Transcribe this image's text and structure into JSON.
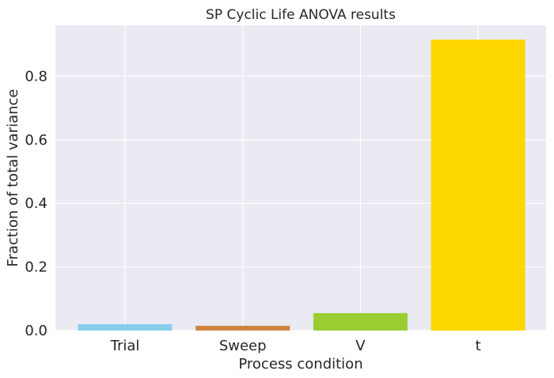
{
  "chart_data": {
    "type": "bar",
    "title": "SP Cyclic Life ANOVA results",
    "xlabel": "Process condition",
    "ylabel": "Fraction of total variance",
    "categories": [
      "Trial",
      "Sweep",
      "V",
      "t"
    ],
    "values": [
      0.02,
      0.015,
      0.055,
      0.915
    ],
    "colors": [
      "#87ceeb",
      "#cd853f",
      "#9acd32",
      "#ffd700"
    ],
    "ylim": [
      0,
      0.96
    ],
    "yticks": [
      0.0,
      0.2,
      0.4,
      0.6,
      0.8
    ],
    "ytick_labels": [
      "0.0",
      "0.2",
      "0.4",
      "0.6",
      "0.8"
    ],
    "grid": true,
    "background": "#eaeaf2"
  }
}
